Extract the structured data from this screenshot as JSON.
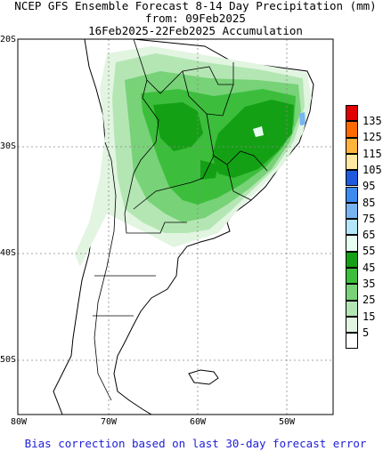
{
  "title": {
    "line1": "NCEP GFS Ensemble Forecast 8-14 Day Precipitation (mm)",
    "line2": "from: 09Feb2025",
    "line3": "16Feb2025-22Feb2025 Accumulation"
  },
  "lat_labels": [
    "20S",
    "30S",
    "40S",
    "50S"
  ],
  "lon_labels": [
    "80W",
    "70W",
    "60W",
    "50W"
  ],
  "legend": {
    "levels": [
      {
        "label": "135",
        "color": "#e00000"
      },
      {
        "label": "125",
        "color": "#ff6a00"
      },
      {
        "label": "115",
        "color": "#ffb43c"
      },
      {
        "label": "105",
        "color": "#ffe8a0"
      },
      {
        "label": "95",
        "color": "#1e5adc"
      },
      {
        "label": "85",
        "color": "#3c8cf0"
      },
      {
        "label": "75",
        "color": "#78b4f0"
      },
      {
        "label": "65",
        "color": "#b4e6fa"
      },
      {
        "label": "55",
        "color": "#e6fff0"
      },
      {
        "label": "45",
        "color": "#14a014"
      },
      {
        "label": "35",
        "color": "#3cbe3c"
      },
      {
        "label": "25",
        "color": "#78d278"
      },
      {
        "label": "15",
        "color": "#b4e6b4"
      },
      {
        "label": "5",
        "color": "#e1f5e1"
      },
      {
        "label": "",
        "color": "#ffffff"
      }
    ]
  },
  "footer": "Bias correction based on last 30-day forecast error"
}
